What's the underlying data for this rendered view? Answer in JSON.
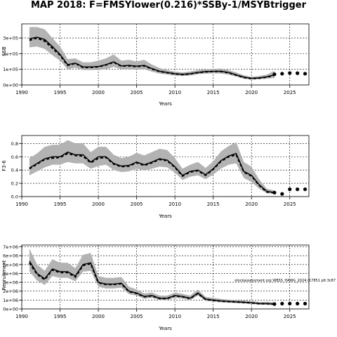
{
  "title": "MAP 2018: F=FMSYlower(0.216)*SSBy-1/MSYBtrigger",
  "chart_data": [
    {
      "type": "line",
      "ylabel": "SSB",
      "xlabel": "Years",
      "xlim": [
        1990,
        2027.5
      ],
      "ylim": [
        0,
        390000
      ],
      "x_ticks": [
        1990,
        1995,
        2000,
        2005,
        2010,
        2015,
        2020,
        2025
      ],
      "y_ticks": [
        0,
        100000,
        200000,
        300000
      ],
      "y_tick_labels": [
        "0e+00",
        "1e+05",
        "2e+05",
        "3e+05"
      ],
      "grid": true,
      "historical": {
        "x": [
          1991,
          1992,
          1993,
          1994,
          1995,
          1996,
          1997,
          1998,
          1999,
          2000,
          2001,
          2002,
          2003,
          2004,
          2005,
          2006,
          2007,
          2008,
          2009,
          2010,
          2011,
          2012,
          2013,
          2014,
          2015,
          2016,
          2017,
          2018,
          2019,
          2020,
          2021,
          2022,
          2023
        ],
        "median": [
          295000,
          305000,
          290000,
          245000,
          195000,
          130000,
          140000,
          115000,
          115000,
          118000,
          130000,
          148000,
          122000,
          125000,
          120000,
          125000,
          105000,
          88000,
          80000,
          72000,
          68000,
          72000,
          80000,
          85000,
          87000,
          88000,
          80000,
          65000,
          50000,
          42000,
          45000,
          52000,
          65000
        ],
        "mean": [
          285000,
          300000,
          280000,
          235000,
          190000,
          125000,
          138000,
          112000,
          112000,
          116000,
          128000,
          145000,
          120000,
          122000,
          118000,
          122000,
          102000,
          86000,
          78000,
          71000,
          67000,
          71000,
          79000,
          84000,
          86000,
          86000,
          78000,
          63000,
          48000,
          41000,
          44000,
          50000,
          62000
        ],
        "lower": [
          240000,
          245000,
          230000,
          190000,
          155000,
          100000,
          110000,
          95000,
          95000,
          95000,
          100000,
          115000,
          100000,
          100000,
          97000,
          100000,
          85000,
          72000,
          67000,
          60000,
          57000,
          60000,
          68000,
          72000,
          74000,
          73000,
          66000,
          53000,
          40000,
          34000,
          36000,
          40000,
          45000
        ],
        "upper": [
          370000,
          370000,
          355000,
          300000,
          245000,
          165000,
          170000,
          145000,
          145000,
          155000,
          170000,
          195000,
          155000,
          160000,
          150000,
          160000,
          130000,
          108000,
          95000,
          85000,
          80000,
          86000,
          95000,
          100000,
          103000,
          105000,
          95000,
          80000,
          62000,
          52000,
          57000,
          66000,
          90000
        ]
      },
      "projection": {
        "x": [
          2023,
          2024,
          2025,
          2026,
          2027
        ],
        "values": [
          68000,
          72000,
          76000,
          75000,
          72000
        ]
      }
    },
    {
      "type": "line",
      "ylabel": "F3-6",
      "xlabel": "Years",
      "xlim": [
        1990,
        2027.5
      ],
      "ylim": [
        0,
        0.92
      ],
      "x_ticks": [
        1990,
        1995,
        2000,
        2005,
        2010,
        2015,
        2020,
        2025
      ],
      "y_ticks": [
        0,
        0.2,
        0.4,
        0.6,
        0.8
      ],
      "y_tick_labels": [
        "0.0",
        "0.2",
        "0.4",
        "0.6",
        "0.8"
      ],
      "grid": true,
      "historical": {
        "x": [
          1991,
          1992,
          1993,
          1994,
          1995,
          1996,
          1997,
          1998,
          1999,
          2000,
          2001,
          2002,
          2003,
          2004,
          2005,
          2006,
          2007,
          2008,
          2009,
          2010,
          2011,
          2012,
          2013,
          2014,
          2015,
          2016,
          2017,
          2018,
          2019,
          2020,
          2021,
          2022,
          2023
        ],
        "median": [
          0.43,
          0.5,
          0.57,
          0.6,
          0.6,
          0.67,
          0.63,
          0.63,
          0.52,
          0.6,
          0.6,
          0.5,
          0.46,
          0.47,
          0.52,
          0.48,
          0.52,
          0.57,
          0.55,
          0.45,
          0.32,
          0.38,
          0.4,
          0.33,
          0.42,
          0.54,
          0.61,
          0.65,
          0.38,
          0.32,
          0.18,
          0.08,
          0.06
        ],
        "mean": [
          0.42,
          0.49,
          0.56,
          0.58,
          0.59,
          0.65,
          0.62,
          0.61,
          0.51,
          0.58,
          0.59,
          0.49,
          0.45,
          0.46,
          0.51,
          0.47,
          0.51,
          0.56,
          0.54,
          0.44,
          0.31,
          0.37,
          0.39,
          0.32,
          0.41,
          0.53,
          0.6,
          0.63,
          0.37,
          0.31,
          0.17,
          0.07,
          0.06
        ],
        "lower": [
          0.32,
          0.38,
          0.44,
          0.48,
          0.48,
          0.52,
          0.5,
          0.5,
          0.42,
          0.46,
          0.48,
          0.4,
          0.37,
          0.38,
          0.42,
          0.39,
          0.42,
          0.45,
          0.44,
          0.36,
          0.25,
          0.3,
          0.32,
          0.26,
          0.33,
          0.42,
          0.48,
          0.5,
          0.28,
          0.22,
          0.12,
          0.05,
          0.04
        ],
        "upper": [
          0.58,
          0.65,
          0.75,
          0.78,
          0.78,
          0.85,
          0.8,
          0.8,
          0.67,
          0.75,
          0.75,
          0.63,
          0.58,
          0.6,
          0.66,
          0.62,
          0.67,
          0.72,
          0.7,
          0.58,
          0.42,
          0.48,
          0.52,
          0.43,
          0.53,
          0.68,
          0.76,
          0.82,
          0.52,
          0.45,
          0.26,
          0.12,
          0.09
        ]
      },
      "projection": {
        "x": [
          2023,
          2024,
          2025,
          2026,
          2027
        ],
        "values": [
          0.06,
          0.04,
          0.11,
          0.11,
          0.11
        ]
      }
    },
    {
      "type": "line",
      "ylabel": "Recruitment",
      "xlabel": "Years",
      "xlim": [
        1990,
        2027.5
      ],
      "ylim": [
        0,
        7200000
      ],
      "x_ticks": [
        1990,
        1995,
        2000,
        2005,
        2010,
        2015,
        2020,
        2025
      ],
      "y_ticks": [
        0,
        1000000,
        2000000,
        3000000,
        4000000,
        5000000,
        6000000,
        7000000
      ],
      "y_tick_labels": [
        "0e+00",
        "1e+06",
        "2e+06",
        "3e+06",
        "4e+06",
        "5e+06",
        "6e+06",
        "7e+06"
      ],
      "grid": true,
      "annotation": "stockassessment.org WBSS_HAWG_2024 r17851  plt:3c87",
      "historical": {
        "x": [
          1991,
          1992,
          1993,
          1994,
          1995,
          1996,
          1997,
          1998,
          1999,
          2000,
          2001,
          2002,
          2003,
          2004,
          2005,
          2006,
          2007,
          2008,
          2009,
          2010,
          2011,
          2012,
          2013,
          2014,
          2015,
          2016,
          2017,
          2018,
          2019,
          2020,
          2021,
          2022,
          2023
        ],
        "median": [
          5400000,
          4000000,
          3400000,
          4500000,
          4200000,
          4200000,
          3700000,
          5000000,
          5200000,
          3000000,
          2800000,
          2800000,
          2900000,
          2000000,
          1800000,
          1400000,
          1500000,
          1200000,
          1200000,
          1500000,
          1400000,
          1200000,
          1800000,
          1100000,
          1000000,
          900000,
          850000,
          800000,
          750000,
          700000,
          600000,
          600000,
          550000
        ],
        "mean": [
          5200000,
          3900000,
          3300000,
          4400000,
          4100000,
          4100000,
          3600000,
          4900000,
          5100000,
          2950000,
          2750000,
          2750000,
          2850000,
          1950000,
          1750000,
          1380000,
          1480000,
          1180000,
          1180000,
          1480000,
          1380000,
          1180000,
          1750000,
          1080000,
          980000,
          880000,
          830000,
          780000,
          730000,
          680000,
          590000,
          590000,
          540000
        ],
        "lower": [
          4200000,
          3200000,
          2700000,
          3700000,
          3500000,
          3500000,
          3100000,
          4200000,
          4300000,
          2500000,
          2300000,
          2300000,
          2400000,
          1650000,
          1500000,
          1150000,
          1250000,
          980000,
          980000,
          1250000,
          1150000,
          980000,
          1500000,
          900000,
          820000,
          740000,
          700000,
          650000,
          610000,
          560000,
          480000,
          470000,
          420000
        ],
        "upper": [
          6800000,
          5000000,
          4300000,
          5600000,
          5200000,
          5200000,
          4600000,
          6100000,
          6300000,
          3700000,
          3500000,
          3500000,
          3600000,
          2500000,
          2200000,
          1750000,
          1850000,
          1500000,
          1500000,
          1850000,
          1700000,
          1500000,
          2200000,
          1350000,
          1250000,
          1120000,
          1050000,
          1000000,
          950000,
          900000,
          780000,
          800000,
          750000
        ]
      },
      "projection": {
        "x": [
          2023,
          2024,
          2025,
          2026,
          2027
        ],
        "values": [
          550000,
          600000,
          600000,
          600000,
          600000
        ]
      }
    }
  ]
}
